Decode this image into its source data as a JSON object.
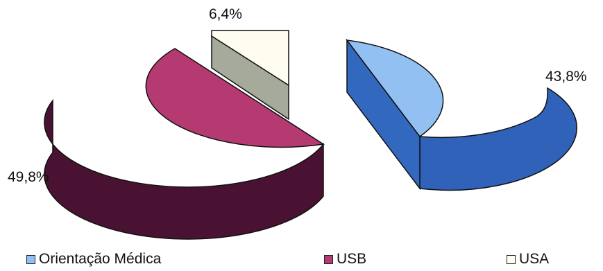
{
  "chart_data": {
    "type": "pie",
    "title": "",
    "categories": [
      "Orientação Médica",
      "USB",
      "USA"
    ],
    "values": [
      43.8,
      49.8,
      6.4
    ],
    "data_labels": [
      "43,8%",
      "49,8%",
      "6,4%"
    ],
    "colors": {
      "Orientação Médica": {
        "top": "#93c0f2",
        "side": "#2f62b8"
      },
      "USB": {
        "top": "#b53a72",
        "side": "#4a1232"
      },
      "USA": {
        "top": "#fffdf0",
        "side": "#a6aa9a"
      }
    },
    "legend_position": "bottom",
    "style": "3d-exploded"
  }
}
